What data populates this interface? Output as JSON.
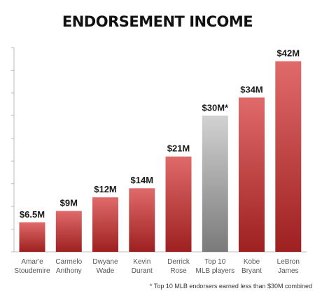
{
  "chart_data": {
    "type": "bar",
    "title": "ENDORSEMENT INCOME",
    "categories": [
      [
        "Amar'e",
        "Stoudemire"
      ],
      [
        "Carmelo",
        "Anthony"
      ],
      [
        "Dwyane",
        "Wade"
      ],
      [
        "Kevin",
        "Durant"
      ],
      [
        "Derrick",
        "Rose"
      ],
      [
        "Top 10",
        "MLB players"
      ],
      [
        "Kobe",
        "Bryant"
      ],
      [
        "LeBron",
        "James"
      ]
    ],
    "values": [
      6.5,
      9,
      12,
      14,
      21,
      30,
      34,
      42
    ],
    "value_labels": [
      "$6.5M",
      "$9M",
      "$12M",
      "$14M",
      "$21M",
      "$30M*",
      "$34M",
      "$42M"
    ],
    "bar_styles": [
      "red",
      "red",
      "red",
      "red",
      "red",
      "gray",
      "red",
      "red"
    ],
    "ylim": [
      0,
      45
    ],
    "grid": false,
    "footnote": "* Top 10 MLB endorsers earned less than $30M combined"
  },
  "colors": {
    "red_top": "#e06a6a",
    "red_bottom": "#9e2020",
    "gray_top": "#d2d2d2",
    "gray_bottom": "#7a7a7a",
    "axis": "#bbbbbb"
  }
}
